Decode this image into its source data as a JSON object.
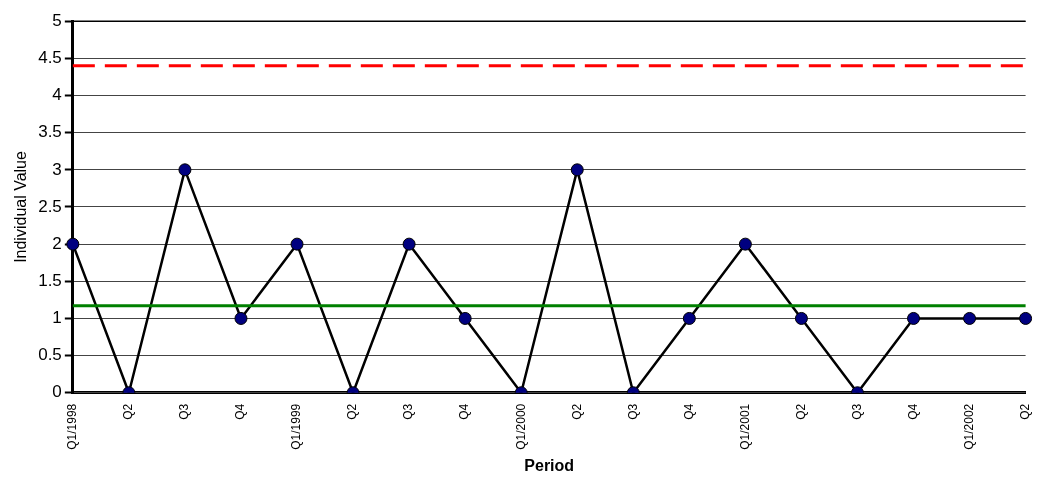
{
  "chart_data": {
    "type": "line",
    "xlabel": "Period",
    "ylabel": "Individual Value",
    "categories": [
      "Q1/1998",
      "Q2",
      "Q3",
      "Q4",
      "Q1/1999",
      "Q2",
      "Q3",
      "Q4",
      "Q1/2000",
      "Q2",
      "Q3",
      "Q4",
      "Q1/2001",
      "Q2",
      "Q3",
      "Q4",
      "Q1/2002",
      "Q2"
    ],
    "series": [
      {
        "color": "#000080",
        "values": [
          2,
          0,
          3,
          1,
          2,
          0,
          2,
          1,
          0,
          3,
          0,
          1,
          2,
          1,
          0,
          1,
          1,
          1
        ]
      }
    ],
    "ylim": [
      0,
      5
    ],
    "yticks": [
      0,
      0.5,
      1,
      1.5,
      2,
      2.5,
      3,
      3.5,
      4,
      4.5,
      5
    ],
    "ref_lines": [
      {
        "axis": "y",
        "value": 4.4,
        "color": "#ff0000",
        "line_style": "dashed"
      },
      {
        "axis": "y",
        "value": 1.17,
        "color": "#008000",
        "line_style": "solid"
      }
    ],
    "grid": "y",
    "legend": false,
    "marker": "circle",
    "line_style": "solid"
  }
}
